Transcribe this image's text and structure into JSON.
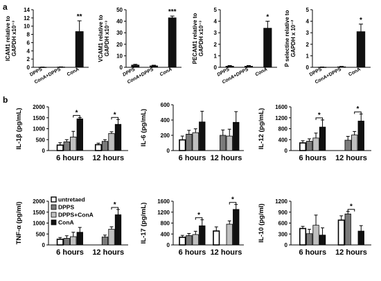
{
  "figure": {
    "panel_a_letter": "a",
    "panel_b_letter": "b"
  },
  "colors": {
    "black": "#111111",
    "white": "#ffffff",
    "dark_gray": "#7a7a7a",
    "light_gray": "#bdbdbd",
    "axis": "#000000"
  },
  "chart_data": [
    {
      "id": "a1",
      "type": "bar",
      "ylabel": [
        "ICAM1 relative to",
        "GAPDH x10⁻³"
      ],
      "categories": [
        "DPPS",
        "ConA+DPPS",
        "ConA"
      ],
      "values": [
        0.05,
        0.08,
        8.7
      ],
      "errors": [
        0.02,
        0.03,
        2.6
      ],
      "ylim": [
        0,
        14
      ],
      "ticks": [
        0,
        2,
        4,
        6,
        8,
        10,
        12,
        14
      ],
      "significance": [
        {
          "index": 2,
          "label": "**"
        }
      ]
    },
    {
      "id": "a2",
      "type": "bar",
      "ylabel": [
        "VCAM1 relative to",
        "GAPDH x10⁻³"
      ],
      "categories": [
        "DPPS",
        "ConA+DPPS",
        "ConA"
      ],
      "values": [
        2.0,
        1.3,
        43
      ],
      "errors": [
        0.6,
        0.5,
        1.5
      ],
      "ylim": [
        0,
        50
      ],
      "ticks": [
        0,
        10,
        20,
        30,
        40,
        50
      ],
      "significance": [
        {
          "index": 2,
          "label": "***"
        }
      ]
    },
    {
      "id": "a3",
      "type": "bar",
      "ylabel": [
        "PECAM1 relative to",
        "GAPDH x10⁻³"
      ],
      "categories": [
        "DPPS",
        "ConA+DPPS",
        "ConA"
      ],
      "values": [
        0.1,
        0.1,
        3.4
      ],
      "errors": [
        0.05,
        0.05,
        0.6
      ],
      "ylim": [
        0,
        5
      ],
      "ticks": [
        0,
        1,
        2,
        3,
        4,
        5
      ],
      "significance": [
        {
          "index": 2,
          "label": "*"
        }
      ]
    },
    {
      "id": "a4",
      "type": "bar",
      "ylabel": [
        "P selectine relative to",
        "GAPDH x 10⁻²"
      ],
      "categories": [
        "DPPS",
        "ConA+DPPS",
        "ConA"
      ],
      "values": [
        0.02,
        0.05,
        3.1
      ],
      "errors": [
        0.01,
        0.03,
        0.65
      ],
      "ylim": [
        0,
        5
      ],
      "ticks": [
        0,
        1,
        2,
        3,
        4,
        5
      ],
      "significance": [
        {
          "index": 2,
          "label": "*"
        }
      ]
    },
    {
      "id": "b1",
      "type": "bar",
      "ylabel": "IL-1β (pg/mL)",
      "categories": [
        "6 hours",
        "12 hours"
      ],
      "series": [
        {
          "name": "untretaed",
          "values": [
            250,
            270
          ],
          "errors": [
            110,
            70
          ]
        },
        {
          "name": "DPPS",
          "values": [
            400,
            420
          ],
          "errors": [
            100,
            80
          ]
        },
        {
          "name": "DPPS+ConA",
          "values": [
            620,
            780
          ],
          "errors": [
            260,
            80
          ]
        },
        {
          "name": "ConA",
          "values": [
            1450,
            1200
          ],
          "errors": [
            60,
            220
          ]
        }
      ],
      "ylim": [
        0,
        2000
      ],
      "ticks": [
        0,
        500,
        1000,
        1500,
        2000
      ],
      "significance": [
        {
          "group": 0,
          "from": 2,
          "to": 3,
          "label": "*"
        },
        {
          "group": 1,
          "from": 2,
          "to": 3,
          "label": "*"
        }
      ]
    },
    {
      "id": "b2",
      "type": "bar",
      "ylabel": "IL-6 (pg/mL)",
      "categories": [
        "6 hours",
        "12 hours"
      ],
      "series": [
        {
          "name": "untretaed",
          "values": [
            140,
            0
          ],
          "errors": [
            50,
            0
          ]
        },
        {
          "name": "DPPS",
          "values": [
            215,
            200
          ],
          "errors": [
            50,
            70
          ]
        },
        {
          "name": "DPPS+ConA",
          "values": [
            235,
            190
          ],
          "errors": [
            50,
            90
          ]
        },
        {
          "name": "ConA",
          "values": [
            375,
            370
          ],
          "errors": [
            140,
            140
          ]
        }
      ],
      "ylim": [
        0,
        600
      ],
      "ticks": [
        0,
        200,
        400,
        600
      ],
      "significance": []
    },
    {
      "id": "b3",
      "type": "bar",
      "ylabel": "IL-12 (pg/mL)",
      "categories": [
        "6 hours",
        "12 hours"
      ],
      "series": [
        {
          "name": "untretaed",
          "values": [
            280,
            0
          ],
          "errors": [
            80,
            0
          ]
        },
        {
          "name": "DPPS",
          "values": [
            340,
            380
          ],
          "errors": [
            90,
            140
          ]
        },
        {
          "name": "DPPS+ConA",
          "values": [
            460,
            570
          ],
          "errors": [
            180,
            130
          ]
        },
        {
          "name": "ConA",
          "values": [
            860,
            1080
          ],
          "errors": [
            260,
            260
          ]
        }
      ],
      "ylim": [
        0,
        1600
      ],
      "ticks": [
        0,
        400,
        800,
        1200,
        1600
      ],
      "significance": [
        {
          "group": 0,
          "from": 2,
          "to": 3,
          "label": "*"
        },
        {
          "group": 1,
          "from": 2,
          "to": 3,
          "label": "*"
        }
      ]
    },
    {
      "id": "b4",
      "type": "bar",
      "ylabel": "TNF-α (pg/ml)",
      "categories": [
        "6 hours",
        "12 hours"
      ],
      "series": [
        {
          "name": "untretaed",
          "values": [
            260,
            0
          ],
          "errors": [
            80,
            0
          ]
        },
        {
          "name": "DPPS",
          "values": [
            300,
            360
          ],
          "errors": [
            120,
            90
          ]
        },
        {
          "name": "DPPS+ConA",
          "values": [
            380,
            720
          ],
          "errors": [
            200,
            110
          ]
        },
        {
          "name": "ConA",
          "values": [
            580,
            1380
          ],
          "errors": [
            220,
            240
          ]
        }
      ],
      "ylim": [
        0,
        2000
      ],
      "ticks": [
        0,
        500,
        1000,
        1500,
        2000
      ],
      "significance": [
        {
          "group": 1,
          "from": 2,
          "to": 3,
          "label": "*"
        }
      ],
      "legend": {
        "position": "top-left",
        "entries": [
          "untretaed",
          "DPPS",
          "DPPS+ConA",
          "ConA"
        ]
      }
    },
    {
      "id": "b5",
      "type": "bar",
      "ylabel": "IL-17 (pg/mL)",
      "categories": [
        "6 hours",
        "12 hours"
      ],
      "series": [
        {
          "name": "untretaed",
          "values": [
            280,
            510
          ],
          "errors": [
            70,
            150
          ]
        },
        {
          "name": "DPPS",
          "values": [
            340,
            0
          ],
          "errors": [
            80,
            0
          ]
        },
        {
          "name": "DPPS+ConA",
          "values": [
            380,
            760
          ],
          "errors": [
            120,
            120
          ]
        },
        {
          "name": "ConA",
          "values": [
            700,
            1300
          ],
          "errors": [
            220,
            180
          ]
        }
      ],
      "ylim": [
        0,
        1600
      ],
      "ticks": [
        0,
        400,
        800,
        1200,
        1600
      ],
      "significance": [
        {
          "group": 0,
          "from": 2,
          "to": 3,
          "label": "*"
        },
        {
          "group": 1,
          "from": 2,
          "to": 3,
          "label": "*"
        }
      ]
    },
    {
      "id": "b6",
      "type": "bar",
      "ylabel": "IL-10 (pg/ml)",
      "categories": [
        "6 hours",
        "12 hours"
      ],
      "series": [
        {
          "name": "untretaed",
          "values": [
            450,
            680
          ],
          "errors": [
            60,
            120
          ]
        },
        {
          "name": "DPPS",
          "values": [
            310,
            850
          ],
          "errors": [
            120,
            70
          ]
        },
        {
          "name": "DPPS+ConA",
          "values": [
            540,
            0
          ],
          "errors": [
            280,
            0
          ]
        },
        {
          "name": "ConA",
          "values": [
            270,
            380
          ],
          "errors": [
            200,
            150
          ]
        }
      ],
      "ylim": [
        0,
        1200
      ],
      "ticks": [
        0,
        300,
        600,
        900,
        1200
      ],
      "significance": [
        {
          "group": 1,
          "from": 1,
          "to": 2,
          "label": "*"
        }
      ]
    }
  ]
}
